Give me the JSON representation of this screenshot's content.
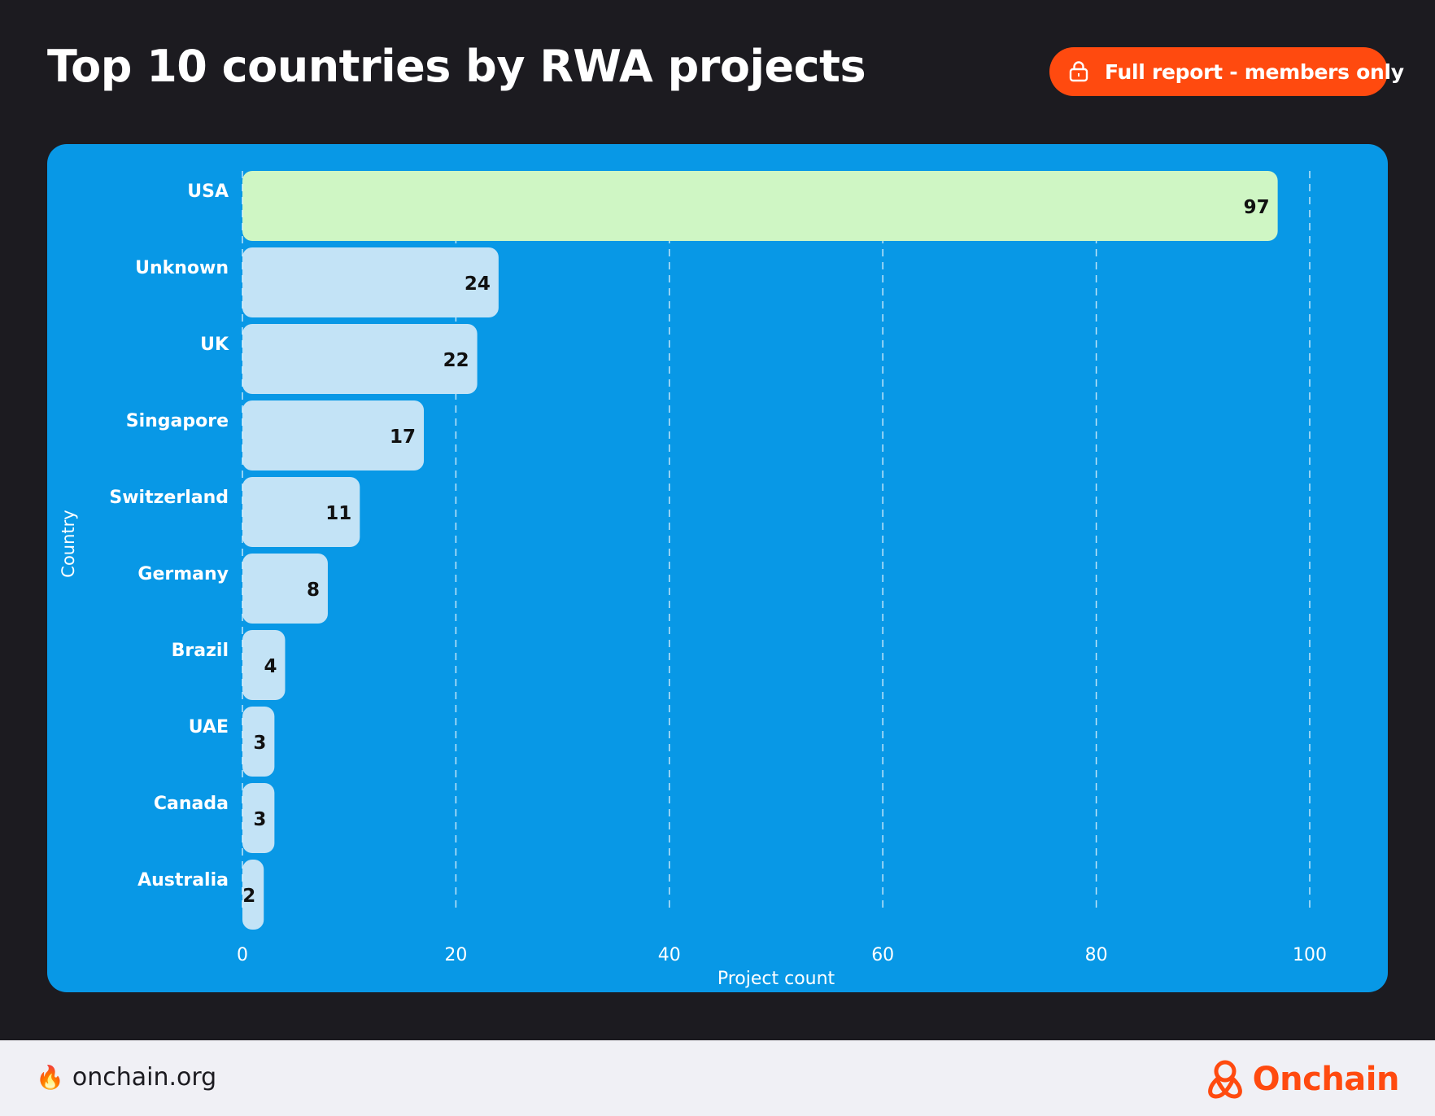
{
  "header": {
    "title": "Top 10 countries by RWA projects",
    "report_button": "Full report - members only"
  },
  "footer": {
    "site": "onchain.org",
    "brand": "Onchain"
  },
  "colors": {
    "background": "#1c1b20",
    "panel": "#0898e6",
    "highlight_bar": "#cff6c4",
    "bar": "#c3e3f6",
    "accent": "#ff4a0f"
  },
  "icons": {
    "report": "lock-icon",
    "site": "flame-icon",
    "brand": "onchain-logo-icon"
  },
  "chart_data": {
    "type": "bar",
    "orientation": "horizontal",
    "title": "Top 10 countries by RWA projects",
    "categories": [
      "USA",
      "Unknown",
      "UK",
      "Singapore",
      "Switzerland",
      "Germany",
      "Brazil",
      "UAE",
      "Canada",
      "Australia"
    ],
    "values": [
      97,
      24,
      22,
      17,
      11,
      8,
      4,
      3,
      3,
      2
    ],
    "highlighted": "USA",
    "xlabel": "Project count",
    "ylabel": "Country",
    "xlim": [
      0,
      100
    ],
    "xticks": [
      0,
      20,
      40,
      60,
      80,
      100
    ],
    "grid": true
  }
}
